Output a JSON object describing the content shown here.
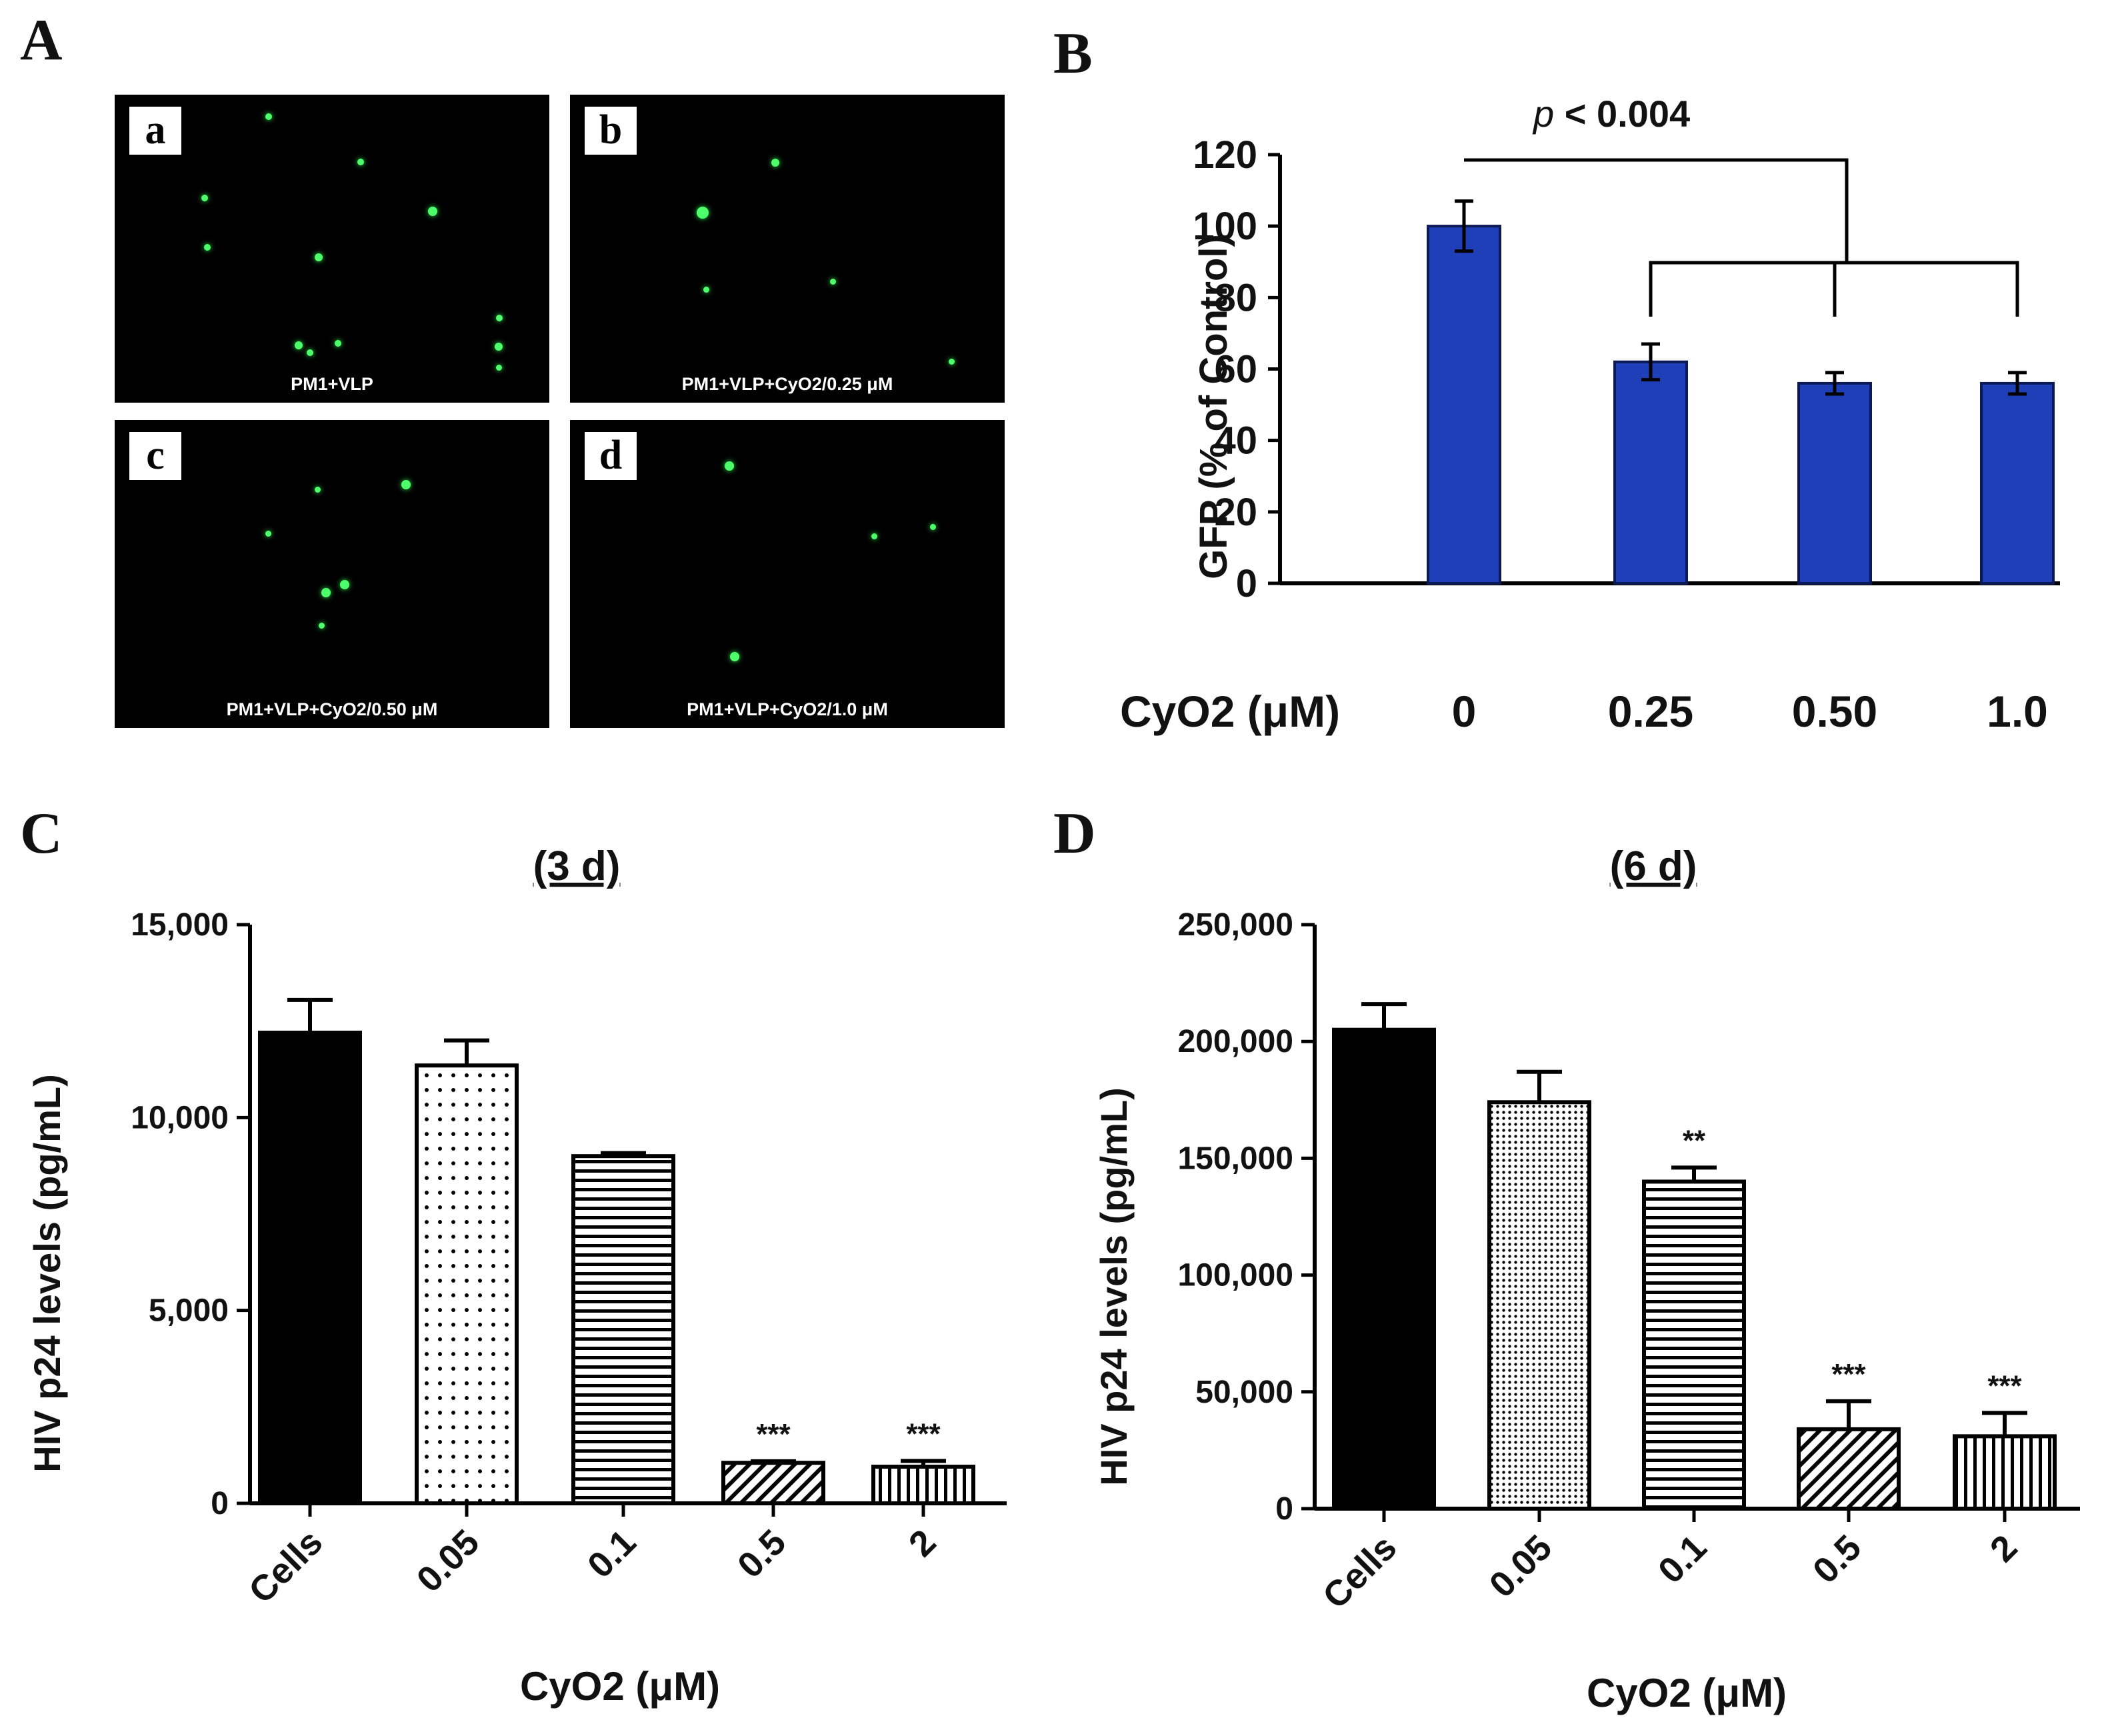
{
  "panels": {
    "A": "A",
    "B": "B",
    "C": "C",
    "D": "D"
  },
  "micrographs": [
    {
      "tag": "a",
      "caption": "PM1+VLP"
    },
    {
      "tag": "b",
      "caption": "PM1+VLP+CyO2/0.25 μM"
    },
    {
      "tag": "c",
      "caption": "PM1+VLP+CyO2/0.50 μM"
    },
    {
      "tag": "d",
      "caption": "PM1+VLP+CyO2/1.0 μM"
    }
  ],
  "chart_data": [
    {
      "id": "B",
      "type": "bar",
      "ylabel": "GFP (% of Control)",
      "xlabel": "CyO2 (μM)",
      "categories": [
        "0",
        "0.25",
        "0.50",
        "1.0"
      ],
      "values": [
        100,
        62,
        56,
        56
      ],
      "errors": [
        7,
        5,
        3,
        3
      ],
      "ylim": [
        0,
        120
      ],
      "yticks": [
        "0",
        "20",
        "40",
        "60",
        "80",
        "100",
        "120"
      ],
      "color": "#1f3fb8",
      "annotation": {
        "p": "p",
        "text": " < 0.004"
      }
    },
    {
      "id": "C",
      "type": "bar",
      "title": "(3 d)",
      "ylabel": "HIV p24 levels (pg/mL)",
      "xlabel": "CyO2 (μM)",
      "categories": [
        "Cells",
        "0.05",
        "0.1",
        "0.5",
        "2"
      ],
      "values": [
        12200,
        11350,
        9000,
        1050,
        950
      ],
      "errors": [
        850,
        650,
        80,
        40,
        150
      ],
      "ylim": [
        0,
        15000
      ],
      "yticks": [
        "0",
        "5,000",
        "10,000",
        "15,000"
      ],
      "significance": [
        "",
        "",
        "",
        "***",
        "***"
      ],
      "patterns": [
        "solid",
        "dots",
        "hlines",
        "diag",
        "vlines"
      ]
    },
    {
      "id": "D",
      "type": "bar",
      "title": "(6 d)",
      "ylabel": "HIV p24 levels (pg/mL)",
      "xlabel": "CyO2 (μM)",
      "categories": [
        "Cells",
        "0.05",
        "0.1",
        "0.5",
        "2"
      ],
      "values": [
        205000,
        174000,
        140000,
        34000,
        31000
      ],
      "errors": [
        11000,
        13000,
        6000,
        12000,
        10000
      ],
      "ylim": [
        0,
        250000
      ],
      "yticks": [
        "0",
        "50,000",
        "100,000",
        "150,000",
        "200,000",
        "250,000"
      ],
      "significance": [
        "",
        "",
        "**",
        "***",
        "***"
      ],
      "patterns": [
        "solid",
        "dense-dots",
        "hlines",
        "diag",
        "vlines"
      ]
    }
  ]
}
